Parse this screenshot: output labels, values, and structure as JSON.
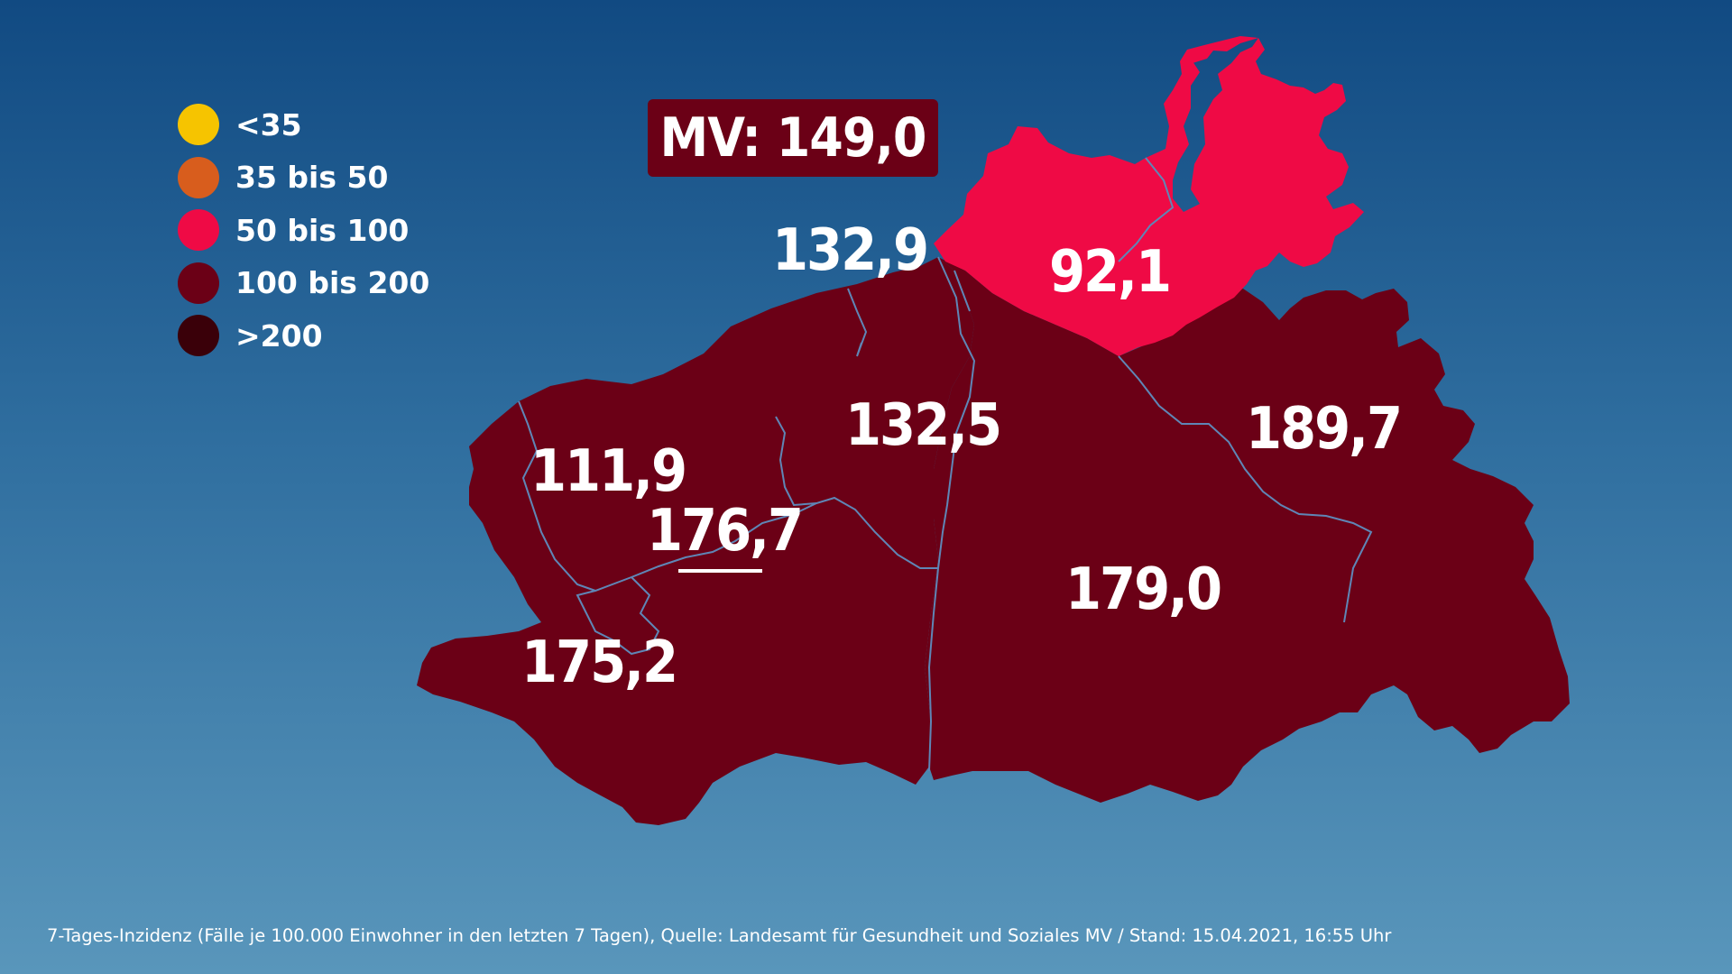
{
  "legend": [
    {
      "label": "<35",
      "color": "#f6c400"
    },
    {
      "label": "35 bis 50",
      "color": "#d85d1d"
    },
    {
      "label": "50 bis 100",
      "color": "#ef0a45"
    },
    {
      "label": "100 bis 200",
      "color": "#6b0016"
    },
    {
      "label": ">200",
      "color": "#3a0009"
    }
  ],
  "state_value": "MV: 149,0",
  "districts": [
    {
      "value": "132,9",
      "category": "100 bis 200"
    },
    {
      "value": "92,1",
      "category": "50 bis 100"
    },
    {
      "value": "132,5",
      "category": "100 bis 200"
    },
    {
      "value": "189,7",
      "category": "100 bis 200"
    },
    {
      "value": "111,9",
      "category": "100 bis 200"
    },
    {
      "value": "176,7",
      "category": "100 bis 200"
    },
    {
      "value": "179,0",
      "category": "100 bis 200"
    },
    {
      "value": "175,2",
      "category": "100 bis 200"
    }
  ],
  "footnote": "7-Tages-Inzidenz (Fälle je 100.000 Einwohner in den letzten 7 Tagen), Quelle: Landesamt für Gesundheit und Soziales MV / Stand: 15.04.2021, 16:55 Uhr",
  "colors": {
    "map_dark": "#6b0016",
    "map_pink": "#ef0a45",
    "border": "#5f86b6"
  }
}
